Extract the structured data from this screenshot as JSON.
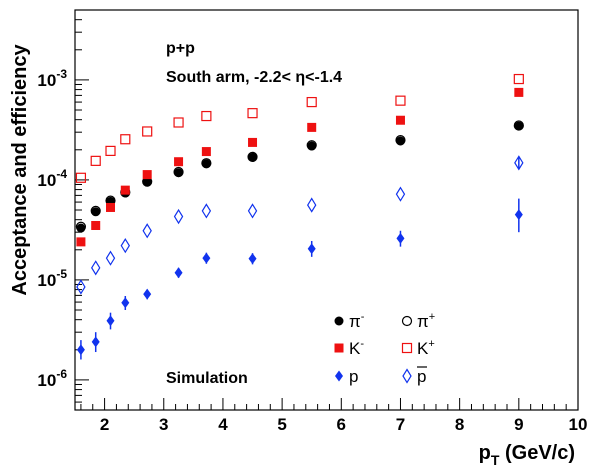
{
  "chart_data": {
    "type": "scatter",
    "title": "",
    "xlabel": "p_T (GeV/c)",
    "ylabel": "Acceptance and efficiency",
    "x_axis": {
      "scale": "linear",
      "range": [
        1.5,
        10
      ],
      "ticks": [
        2,
        3,
        4,
        5,
        6,
        7,
        8,
        9,
        10
      ]
    },
    "y_axis": {
      "scale": "log",
      "range": [
        5e-07,
        0.005
      ],
      "ticks": [
        {
          "value": 1e-06,
          "mantissa": "10",
          "exponent": "-6"
        },
        {
          "value": 1e-05,
          "mantissa": "10",
          "exponent": "-5"
        },
        {
          "value": 0.0001,
          "mantissa": "10",
          "exponent": "-4"
        },
        {
          "value": 0.001,
          "mantissa": "10",
          "exponent": "-3"
        }
      ]
    },
    "grid": false,
    "annotations": {
      "system": "p+p",
      "arm": "South arm,  -2.2< η<-1.4",
      "simulation": "Simulation"
    },
    "series": [
      {
        "name": "π-",
        "label_base": "π",
        "label_sup": "-",
        "marker": "filled-circle",
        "color": "#000000",
        "points": [
          {
            "x": 1.6,
            "y": 3.3e-05
          },
          {
            "x": 1.85,
            "y": 4.8e-05
          },
          {
            "x": 2.1,
            "y": 6.1e-05
          },
          {
            "x": 2.35,
            "y": 7.4e-05
          },
          {
            "x": 2.72,
            "y": 9.5e-05
          },
          {
            "x": 3.25,
            "y": 0.000118
          },
          {
            "x": 3.72,
            "y": 0.000145
          },
          {
            "x": 4.5,
            "y": 0.000168
          },
          {
            "x": 5.5,
            "y": 0.000218
          },
          {
            "x": 7.0,
            "y": 0.000245
          },
          {
            "x": 9.0,
            "y": 0.000345
          }
        ]
      },
      {
        "name": "π+",
        "label_base": "π",
        "label_sup": "+",
        "marker": "open-circle",
        "color": "#000000",
        "points": [
          {
            "x": 1.6,
            "y": 3.4e-05
          },
          {
            "x": 1.85,
            "y": 4.9e-05
          },
          {
            "x": 2.1,
            "y": 6.2e-05
          },
          {
            "x": 2.35,
            "y": 7.5e-05
          },
          {
            "x": 2.72,
            "y": 9.6e-05
          },
          {
            "x": 3.25,
            "y": 0.00012
          },
          {
            "x": 3.72,
            "y": 0.000147
          },
          {
            "x": 4.5,
            "y": 0.00017
          },
          {
            "x": 5.5,
            "y": 0.000222
          },
          {
            "x": 7.0,
            "y": 0.00025
          },
          {
            "x": 9.0,
            "y": 0.00035
          }
        ]
      },
      {
        "name": "K-",
        "label_base": "K",
        "label_sup": "-",
        "marker": "filled-square",
        "color": "#ee1111",
        "points": [
          {
            "x": 1.6,
            "y": 2.4e-05
          },
          {
            "x": 1.85,
            "y": 3.5e-05
          },
          {
            "x": 2.1,
            "y": 5.3e-05
          },
          {
            "x": 2.35,
            "y": 7.9e-05
          },
          {
            "x": 2.72,
            "y": 0.000113
          },
          {
            "x": 3.25,
            "y": 0.000152
          },
          {
            "x": 3.72,
            "y": 0.000192
          },
          {
            "x": 4.5,
            "y": 0.000237
          },
          {
            "x": 5.5,
            "y": 0.000335
          },
          {
            "x": 7.0,
            "y": 0.000395
          },
          {
            "x": 9.0,
            "y": 0.00075
          }
        ]
      },
      {
        "name": "K+",
        "label_base": "K",
        "label_sup": "+",
        "marker": "open-square",
        "color": "#ee1111",
        "points": [
          {
            "x": 1.6,
            "y": 0.000105
          },
          {
            "x": 1.85,
            "y": 0.000155
          },
          {
            "x": 2.1,
            "y": 0.000195
          },
          {
            "x": 2.35,
            "y": 0.000255
          },
          {
            "x": 2.72,
            "y": 0.000305
          },
          {
            "x": 3.25,
            "y": 0.000375
          },
          {
            "x": 3.72,
            "y": 0.000435
          },
          {
            "x": 4.5,
            "y": 0.000465
          },
          {
            "x": 5.5,
            "y": 0.0006
          },
          {
            "x": 7.0,
            "y": 0.00062
          },
          {
            "x": 9.0,
            "y": 0.00102
          }
        ]
      },
      {
        "name": "p",
        "label_base": "p",
        "label_sup": "",
        "marker": "filled-diamond",
        "color": "#1133ee",
        "points": [
          {
            "x": 1.6,
            "y": 2e-06,
            "err": [
              1.6e-06,
              2.5e-06
            ]
          },
          {
            "x": 1.85,
            "y": 2.4e-06,
            "err": [
              1.9e-06,
              3e-06
            ]
          },
          {
            "x": 2.1,
            "y": 3.9e-06,
            "err": [
              3.2e-06,
              4.7e-06
            ]
          },
          {
            "x": 2.35,
            "y": 5.9e-06,
            "err": [
              5e-06,
              6.9e-06
            ]
          },
          {
            "x": 2.72,
            "y": 7.2e-06,
            "err": [
              6.4e-06,
              8e-06
            ]
          },
          {
            "x": 3.25,
            "y": 1.18e-05,
            "err": [
              1.05e-05,
              1.32e-05
            ]
          },
          {
            "x": 3.72,
            "y": 1.65e-05,
            "err": [
              1.45e-05,
              1.87e-05
            ]
          },
          {
            "x": 4.5,
            "y": 1.63e-05,
            "err": [
              1.43e-05,
              1.85e-05
            ]
          },
          {
            "x": 5.5,
            "y": 2.05e-05,
            "err": [
              1.7e-05,
              2.45e-05
            ]
          },
          {
            "x": 7.0,
            "y": 2.6e-05,
            "err": [
              2.15e-05,
              3.1e-05
            ]
          },
          {
            "x": 9.0,
            "y": 4.5e-05,
            "err": [
              3e-05,
              6.5e-05
            ]
          }
        ]
      },
      {
        "name": "p̄",
        "label_base": "p",
        "label_sup": "",
        "overline": true,
        "marker": "open-diamond",
        "color": "#1133ee",
        "points": [
          {
            "x": 1.6,
            "y": 8.5e-06
          },
          {
            "x": 1.85,
            "y": 1.32e-05
          },
          {
            "x": 2.1,
            "y": 1.65e-05
          },
          {
            "x": 2.35,
            "y": 2.2e-05
          },
          {
            "x": 2.72,
            "y": 3.1e-05
          },
          {
            "x": 3.25,
            "y": 4.3e-05
          },
          {
            "x": 3.72,
            "y": 4.9e-05
          },
          {
            "x": 4.5,
            "y": 4.9e-05
          },
          {
            "x": 5.5,
            "y": 5.6e-05
          },
          {
            "x": 7.0,
            "y": 7.2e-05
          },
          {
            "x": 9.0,
            "y": 0.000148,
            "err": [
              0.000128,
              0.00017
            ]
          }
        ]
      }
    ]
  }
}
